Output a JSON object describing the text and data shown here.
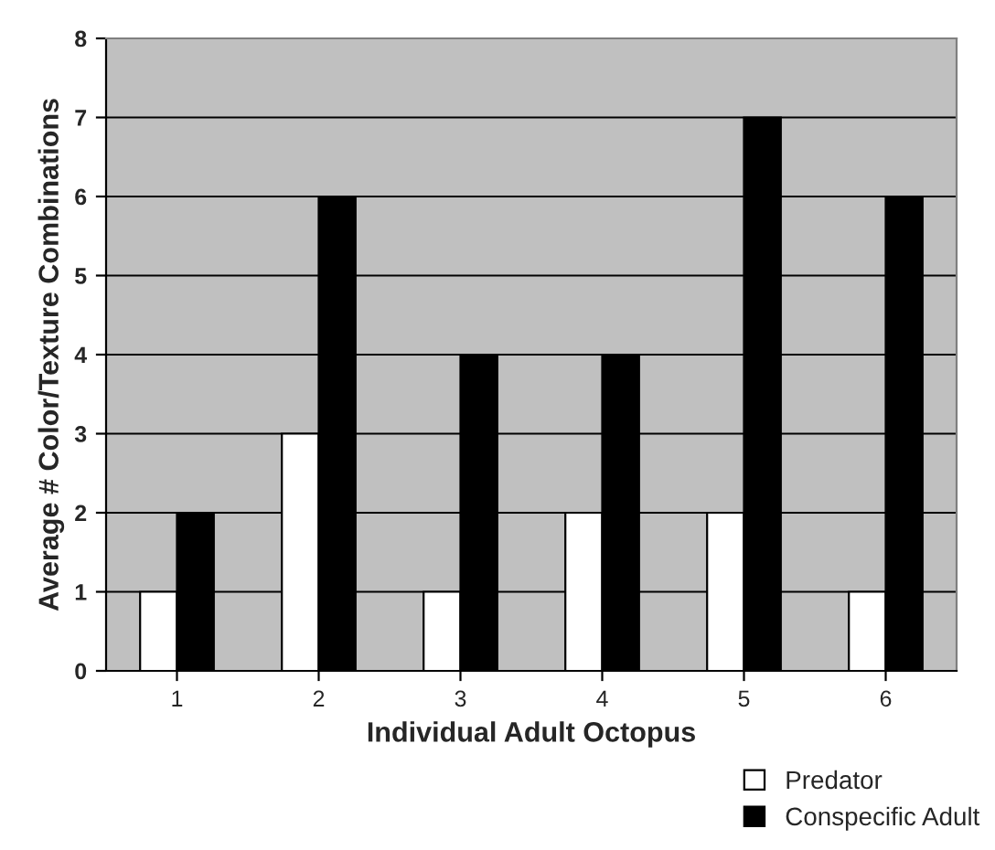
{
  "chart_data": {
    "type": "bar",
    "xlabel": "Individual Adult Octopus",
    "ylabel": "Average # Color/Texture Combinations",
    "categories": [
      "1",
      "2",
      "3",
      "4",
      "5",
      "6"
    ],
    "series": [
      {
        "name": "Predator",
        "color": "#ffffff",
        "values": [
          1,
          3,
          1,
          2,
          2,
          1
        ]
      },
      {
        "name": "Conspecific Adult",
        "color": "#000000",
        "values": [
          2,
          6,
          4,
          4,
          7,
          6
        ]
      }
    ],
    "ylim": [
      0,
      8
    ],
    "yticks": [
      0,
      1,
      2,
      3,
      4,
      5,
      6,
      7,
      8
    ],
    "grid": "y",
    "legend": "bottom right"
  }
}
